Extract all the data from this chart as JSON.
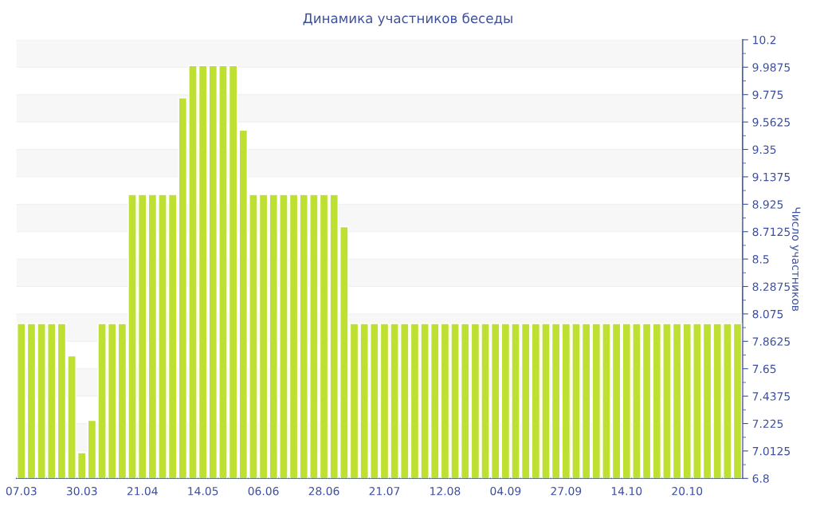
{
  "chart_data": {
    "type": "bar",
    "title": "Динамика участников беседы",
    "y2label": "Число участников",
    "categories": [
      "07.03",
      null,
      null,
      null,
      null,
      null,
      "30.03",
      null,
      null,
      null,
      null,
      null,
      "21.04",
      null,
      null,
      null,
      null,
      null,
      "14.05",
      null,
      null,
      null,
      null,
      null,
      "06.06",
      null,
      null,
      null,
      null,
      null,
      "28.06",
      null,
      null,
      null,
      null,
      null,
      "21.07",
      null,
      null,
      null,
      null,
      null,
      "12.08",
      null,
      null,
      null,
      null,
      null,
      "04.09",
      null,
      null,
      null,
      null,
      null,
      "27.09",
      null,
      null,
      null,
      null,
      null,
      "14.10",
      null,
      null,
      null,
      null,
      null,
      "20.10",
      null,
      null,
      null,
      null,
      null
    ],
    "series": [
      {
        "color": "#bee032",
        "axis": "y2",
        "values": [
          8,
          8,
          8,
          8,
          8,
          7.75,
          7,
          7.25,
          8,
          8,
          8,
          9,
          9,
          9,
          9,
          9,
          9.75,
          10,
          10,
          10,
          10,
          10,
          9.5,
          9,
          9,
          9,
          9,
          9,
          9,
          9,
          9,
          9,
          8.75,
          8,
          8,
          8,
          8,
          8,
          8,
          8,
          8,
          8,
          8,
          8,
          8,
          8,
          8,
          8,
          8,
          8,
          8,
          8,
          8,
          8,
          8,
          8,
          8,
          8,
          8,
          8,
          8,
          8,
          8,
          8,
          8,
          8,
          8,
          8,
          8,
          8,
          8,
          8
        ]
      }
    ],
    "y2lim": [
      6.8,
      10.2
    ],
    "y2ticks": [
      6.8,
      7.0125,
      7.225,
      7.4375,
      7.65,
      7.8625,
      8.075,
      8.2875,
      8.5,
      8.7125,
      8.925,
      9.1375,
      9.35,
      9.5625,
      9.775,
      9.9875,
      10.2
    ],
    "grid": "y"
  }
}
